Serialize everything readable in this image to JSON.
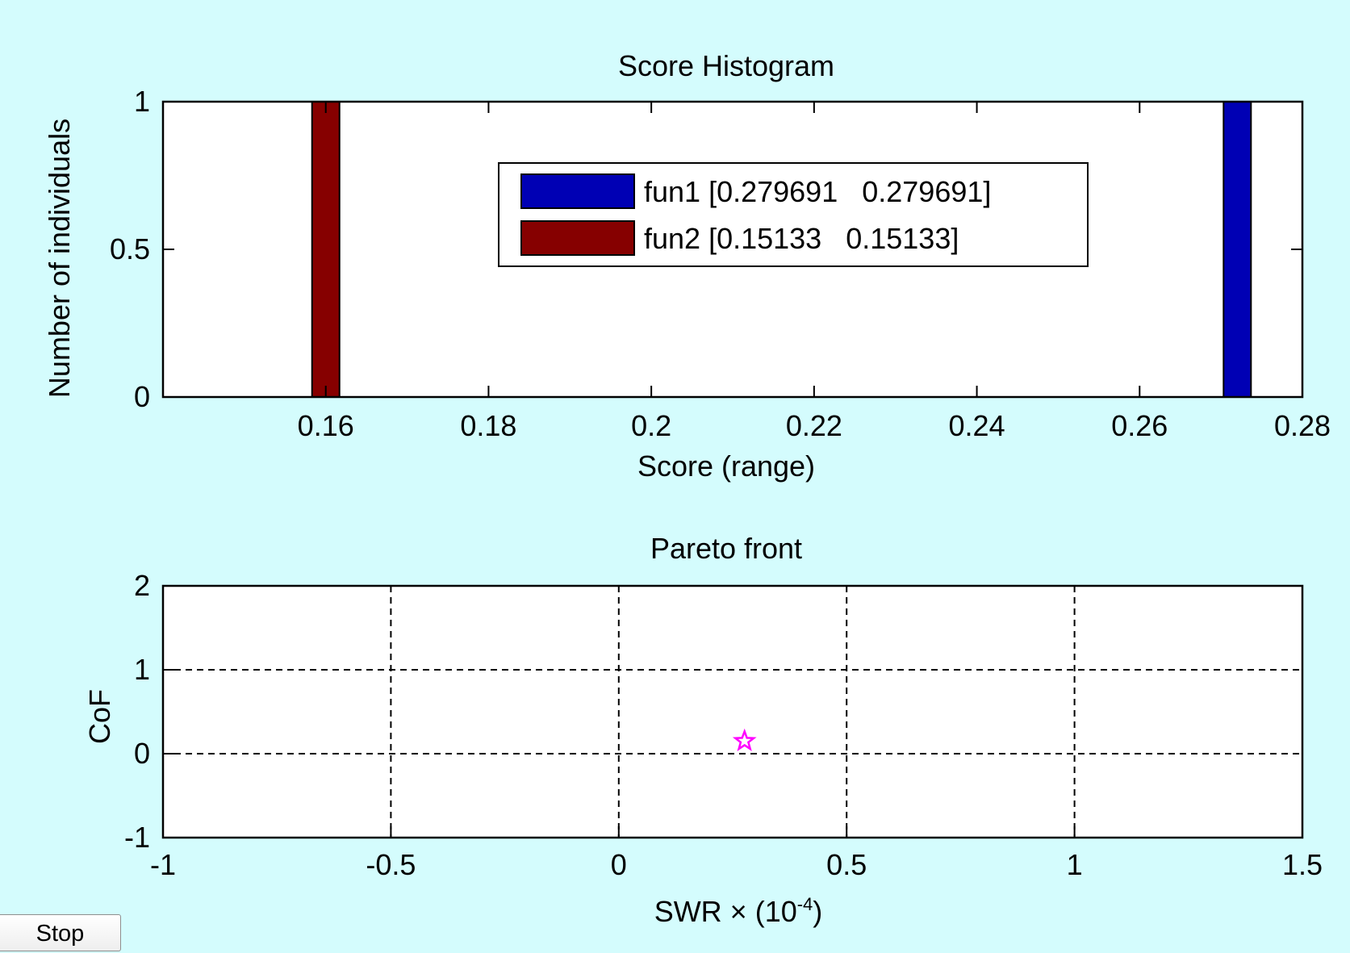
{
  "chart_data": [
    {
      "type": "bar",
      "title": "Score Histogram",
      "xlabel": "Score (range)",
      "ylabel": "Number of individuals",
      "xlim": [
        0.14,
        0.28
      ],
      "ylim": [
        0,
        1
      ],
      "xticks": [
        0.16,
        0.18,
        0.2,
        0.22,
        0.24,
        0.26,
        0.28
      ],
      "xtick_labels": [
        "0.16",
        "0.18",
        "0.2",
        "0.22",
        "0.24",
        "0.26",
        "0.28"
      ],
      "yticks": [
        0,
        0.5,
        1
      ],
      "ytick_labels": [
        "0",
        "0.5",
        "1"
      ],
      "grid": false,
      "legend_position": "top-center",
      "series": [
        {
          "name": "fun1 [0.279691   0.279691]",
          "color": "#0000b4",
          "bins": [
            {
              "x": 0.272,
              "value": 1
            }
          ]
        },
        {
          "name": "fun2 [0.15133   0.15133]",
          "color": "#860000",
          "bins": [
            {
              "x": 0.16,
              "value": 1
            }
          ]
        }
      ]
    },
    {
      "type": "scatter",
      "title": "Pareto front",
      "xlabel": "SWR × (10",
      "xlabel_sup": "-4",
      "xlabel_end": ")",
      "ylabel": "CoF",
      "xlim": [
        -1,
        1.5
      ],
      "ylim": [
        -1,
        2
      ],
      "xticks": [
        -1,
        -0.5,
        0,
        0.5,
        1,
        1.5
      ],
      "xtick_labels": [
        "-1",
        "-0.5",
        "0",
        "0.5",
        "1",
        "1.5"
      ],
      "yticks": [
        -1,
        0,
        1,
        2
      ],
      "ytick_labels": [
        "-1",
        "0",
        "1",
        "2"
      ],
      "grid": true,
      "marker": "star",
      "marker_color": "#ff00ff",
      "points": [
        {
          "x": 0.276,
          "y": 0.15
        }
      ]
    }
  ],
  "controls": {
    "stop_label": "Stop"
  }
}
